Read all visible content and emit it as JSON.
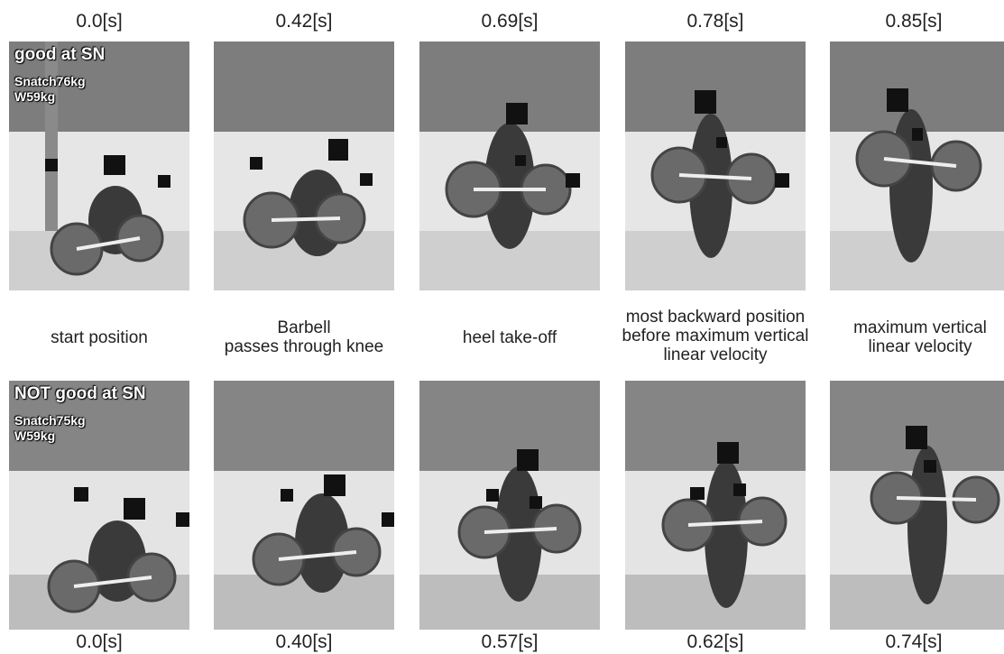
{
  "top_times": [
    "0.0[s]",
    "0.42[s]",
    "0.69[s]",
    "0.78[s]",
    "0.85[s]"
  ],
  "bottom_times": [
    "0.0[s]",
    "0.40[s]",
    "0.57[s]",
    "0.62[s]",
    "0.74[s]"
  ],
  "phases": [
    [
      "start position"
    ],
    [
      "Barbell",
      "passes through knee"
    ],
    [
      "heel take-off"
    ],
    [
      "most backward position",
      "before maximum vertical",
      "linear velocity"
    ],
    [
      "maximum vertical",
      "linear velocity"
    ]
  ],
  "good": {
    "label": "good at SN",
    "snatch": "Snatch76kg",
    "weight": "W59kg"
  },
  "not_good": {
    "label": "NOT good at SN",
    "snatch": "Snatch75kg",
    "weight": "W59kg"
  }
}
